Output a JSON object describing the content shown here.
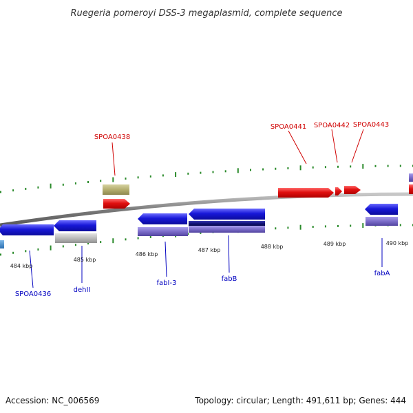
{
  "title": "Ruegeria pomeroyi DSS-3 megaplasmid, complete sequence",
  "footer": {
    "accession": "Accession: NC_006569",
    "summary": "Topology: circular; Length: 491,611 bp; Genes: 444"
  },
  "colors": {
    "forward_gene": "#e01010",
    "reverse_gene": "#1818d8",
    "rna_or_pseudo": "#b4ae6e",
    "grey_feature": "#bbbbbb",
    "purple_feature": "#7b6cc9",
    "navy_feature": "#12127a",
    "backbone": "#8c8c8c",
    "tick": "#2a8a2a",
    "forward_label": "#d00000",
    "reverse_label": "#0000c0"
  },
  "scale_labels": [
    "484 kbp",
    "485 kbp",
    "486 kbp",
    "487 kbp",
    "488 kbp",
    "489 kbp",
    "490 kbp"
  ],
  "forward_labels": [
    "SPOA0438",
    "SPOA0441",
    "SPOA0442",
    "SPOA0443"
  ],
  "reverse_labels": [
    "SPOA0436",
    "dehII",
    "fabI-3",
    "fabB",
    "fabA"
  ]
}
